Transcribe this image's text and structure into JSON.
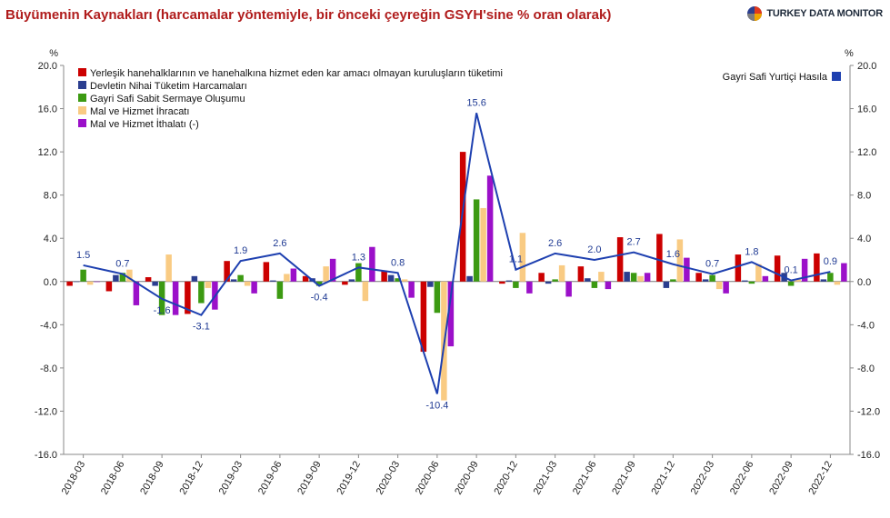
{
  "title": "Büyümenin Kaynakları (harcamalar yöntemiyle, bir önceki çeyreğin GSYH'sine % oran olarak)",
  "brand": "TURKEY DATA MONITOR",
  "chart_data": {
    "type": "bar",
    "left_unit": "%",
    "right_unit": "%",
    "ylim": [
      -16,
      20
    ],
    "yticks": [
      "20.0",
      "16.0",
      "12.0",
      "8.0",
      "4.0",
      "0.0",
      "-4.0",
      "-8.0",
      "-12.0",
      "-16.0"
    ],
    "ytick_values": [
      20,
      16,
      12,
      8,
      4,
      0,
      -4,
      -8,
      -12,
      -16
    ],
    "grid": false,
    "legend_position": "top-left",
    "categories": [
      "2018-03",
      "2018-06",
      "2018-09",
      "2018-12",
      "2019-03",
      "2019-06",
      "2019-09",
      "2019-12",
      "2020-03",
      "2020-06",
      "2020-09",
      "2020-12",
      "2021-03",
      "2021-06",
      "2021-09",
      "2021-12",
      "2022-03",
      "2022-06",
      "2022-09",
      "2022-12"
    ],
    "series": [
      {
        "name": "Yerleşik hanehalklarının ve hanehalkına hizmet eden kar amacı olmayan kuruluşların tüketimi",
        "color": "#cc0000",
        "values": [
          -0.4,
          -0.9,
          0.4,
          -3.0,
          1.9,
          1.8,
          0.5,
          -0.3,
          1.0,
          -6.5,
          12.0,
          -0.2,
          0.8,
          1.4,
          4.1,
          4.4,
          0.8,
          2.5,
          2.4,
          2.6
        ]
      },
      {
        "name": "Devletin Nihai Tüketim Harcamaları",
        "color": "#2b3e8f",
        "values": [
          0.0,
          0.6,
          -0.4,
          0.5,
          0.2,
          0.1,
          0.3,
          0.2,
          0.6,
          -0.5,
          0.5,
          0.1,
          -0.2,
          0.3,
          0.9,
          -0.6,
          0.2,
          0.1,
          0.8,
          0.2
        ]
      },
      {
        "name": "Gayri Safi Sabit Sermaye Oluşumu",
        "color": "#3c9a12",
        "values": [
          1.1,
          0.8,
          -3.1,
          -2.0,
          0.6,
          -1.6,
          -0.4,
          1.7,
          0.3,
          -2.9,
          7.6,
          -0.6,
          0.2,
          -0.6,
          0.8,
          0.2,
          0.6,
          -0.2,
          -0.4,
          0.8
        ]
      },
      {
        "name": "Mal ve Hizmet İhracatı",
        "color": "#f9cb83",
        "values": [
          -0.3,
          1.1,
          2.5,
          -0.6,
          -0.4,
          0.7,
          1.4,
          -1.8,
          0.2,
          -11.0,
          6.8,
          4.5,
          1.5,
          0.9,
          0.5,
          3.9,
          -0.7,
          1.6,
          0.2,
          -0.3
        ]
      },
      {
        "name": "Mal ve Hizmet İthalatı (-)",
        "color": "#9b10c9",
        "values": [
          0.0,
          -2.2,
          -3.1,
          -2.6,
          -1.1,
          1.2,
          2.1,
          3.2,
          -1.5,
          -6.0,
          9.8,
          -1.1,
          -1.4,
          -0.7,
          0.8,
          2.2,
          -1.1,
          0.5,
          2.1,
          1.7
        ]
      }
    ],
    "line_series": {
      "name": "Gayri Safi Yurtiçi Hasıla",
      "color": "#1e40b0",
      "values": [
        1.5,
        0.7,
        -1.6,
        -3.1,
        1.9,
        2.6,
        -0.4,
        1.3,
        0.8,
        -10.4,
        15.6,
        1.1,
        2.6,
        2.0,
        2.7,
        1.6,
        0.7,
        1.8,
        0.1,
        0.9
      ],
      "labels": [
        "1.5",
        "0.7",
        "-1.6",
        "-3.1",
        "1.9",
        "2.6",
        "-0.4",
        "1.3",
        "0.8",
        "-10.4",
        "15.6",
        "1.1",
        "2.6",
        "2.0",
        "2.7",
        "1.6",
        "0.7",
        "1.8",
        "0.1",
        "0.9"
      ]
    }
  },
  "brand_colors": [
    "#e03a1e",
    "#f0a500",
    "#2b3e8f",
    "#7d7d7d"
  ]
}
